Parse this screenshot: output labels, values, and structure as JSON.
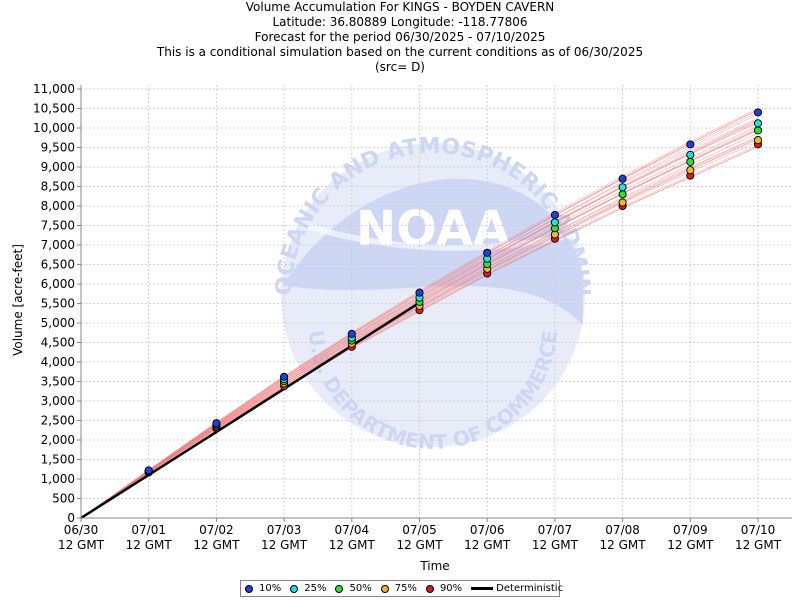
{
  "titles": {
    "line1": "Volume Accumulation For KINGS - BOYDEN CAVERN",
    "line2": "Latitude: 36.80889 Longitude: -118.77806",
    "line3": "Forecast for the period 06/30/2025 - 07/10/2025",
    "line4": "This is a conditional simulation based on the current conditions as of 06/30/2025",
    "line5": "(src= D)"
  },
  "watermark": {
    "logo_text": "NOAA",
    "ring_text_top": "NATIONAL OCEANIC AND ATMOSPHERIC ADMINISTRATION",
    "ring_text_bottom": "U.S. DEPARTMENT OF COMMERCE"
  },
  "colors": {
    "p10": "#1f3fd6",
    "p25": "#22e0e0",
    "p50": "#33dd33",
    "p75": "#f2b533",
    "p90": "#d81b1b",
    "ensemble": "#f08080",
    "deterministic": "#000000"
  },
  "chart_data": {
    "type": "scatter",
    "xlabel": "Time",
    "ylabel": "Volume [acre-feet]",
    "ylim": [
      0,
      11000
    ],
    "yticks": [
      "0",
      "500",
      "1,000",
      "1,500",
      "2,000",
      "2,500",
      "3,000",
      "3,500",
      "4,000",
      "4,500",
      "5,000",
      "5,500",
      "6,000",
      "6,500",
      "7,000",
      "7,500",
      "8,000",
      "8,500",
      "9,000",
      "9,500",
      "10,000",
      "10,500",
      "11,000"
    ],
    "categories": [
      "06/30",
      "07/01",
      "07/02",
      "07/03",
      "07/04",
      "07/05",
      "07/06",
      "07/07",
      "07/08",
      "07/09",
      "07/10"
    ],
    "tick_sublabel": "12 GMT",
    "grid": true,
    "legend_position": "bottom",
    "series": [
      {
        "name": "10%",
        "values": [
          0,
          1220,
          2430,
          3620,
          4720,
          5780,
          6800,
          7770,
          8700,
          9580,
          10400
        ]
      },
      {
        "name": "25%",
        "values": [
          0,
          1205,
          2400,
          3560,
          4620,
          5650,
          6650,
          7580,
          8480,
          9310,
          10120
        ]
      },
      {
        "name": "50%",
        "values": [
          0,
          1195,
          2370,
          3510,
          4550,
          5540,
          6510,
          7430,
          8300,
          9130,
          9940
        ]
      },
      {
        "name": "75%",
        "values": [
          0,
          1185,
          2340,
          3450,
          4470,
          5440,
          6390,
          7270,
          8090,
          8920,
          9690
        ]
      },
      {
        "name": "90%",
        "values": [
          0,
          1170,
          2300,
          3380,
          4390,
          5330,
          6270,
          7160,
          8000,
          8780,
          9580
        ]
      },
      {
        "name": "Deterministic",
        "x": [
          0,
          5
        ],
        "values": [
          0,
          5520
        ]
      }
    ],
    "ensemble_range": {
      "low": [
        0,
        1160,
        2270,
        3340,
        4350,
        5290,
        6230,
        7100,
        7950,
        8740,
        9520
      ],
      "high": [
        0,
        1230,
        2450,
        3640,
        4760,
        5820,
        6840,
        7820,
        8760,
        9650,
        10500
      ]
    }
  }
}
